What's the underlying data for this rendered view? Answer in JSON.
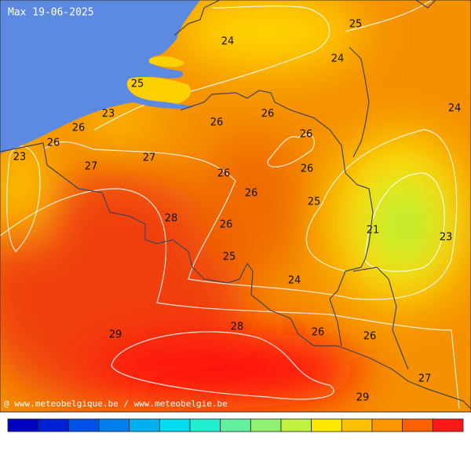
{
  "title": "Max 19-06-2025",
  "labels": [
    24,
    25,
    24,
    25,
    23,
    26,
    26,
    24,
    26,
    26,
    26,
    23,
    27,
    27,
    26,
    26,
    26,
    25,
    28,
    26,
    21,
    23,
    25,
    24,
    28,
    29,
    26,
    26,
    27,
    29
  ],
  "credit": "@ www.meteobelgique.be / www.meteobelgie.be"
}
